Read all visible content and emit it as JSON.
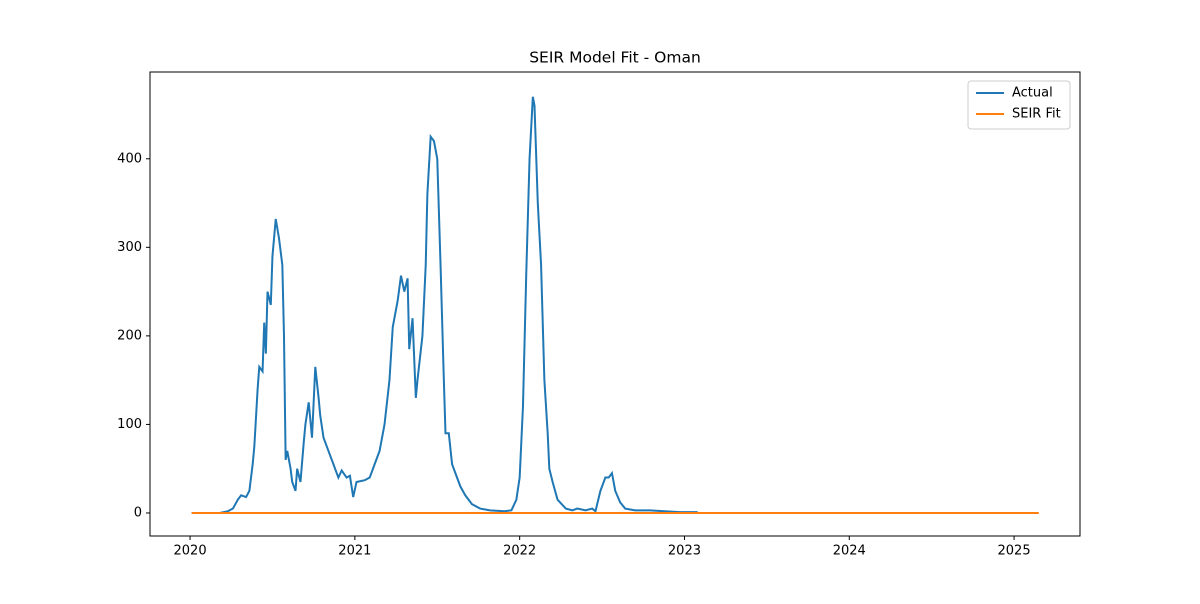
{
  "chart_data": {
    "type": "line",
    "title": "SEIR Model Fit - Oman",
    "legend": "upper right",
    "xlim": [
      2019.757,
      2025.4
    ],
    "xticks": [
      2020,
      2021,
      2022,
      2023,
      2024,
      2025
    ],
    "ylim": [
      -26,
      498
    ],
    "yticks": [
      0,
      100,
      200,
      300,
      400
    ],
    "series": [
      {
        "name": "Actual",
        "color": "#1f77b4",
        "x": [
          2020.01,
          2020.18,
          2020.23,
          2020.26,
          2020.29,
          2020.31,
          2020.34,
          2020.36,
          2020.38,
          2020.39,
          2020.41,
          2020.42,
          2020.44,
          2020.45,
          2020.46,
          2020.47,
          2020.49,
          2020.5,
          2020.52,
          2020.54,
          2020.56,
          2020.57,
          2020.58,
          2020.59,
          2020.61,
          2020.62,
          2020.64,
          2020.65,
          2020.67,
          2020.69,
          2020.7,
          2020.72,
          2020.74,
          2020.76,
          2020.78,
          2020.79,
          2020.81,
          2020.83,
          2020.85,
          2020.87,
          2020.9,
          2020.92,
          2020.95,
          2020.97,
          2020.99,
          2021.01,
          2021.06,
          2021.09,
          2021.12,
          2021.15,
          2021.18,
          2021.21,
          2021.23,
          2021.26,
          2021.28,
          2021.3,
          2021.32,
          2021.33,
          2021.35,
          2021.37,
          2021.38,
          2021.41,
          2021.43,
          2021.44,
          2021.46,
          2021.48,
          2021.5,
          2021.52,
          2021.54,
          2021.55,
          2021.57,
          2021.59,
          2021.61,
          2021.64,
          2021.67,
          2021.71,
          2021.76,
          2021.82,
          2021.91,
          2021.95,
          2021.98,
          2022.0,
          2022.02,
          2022.04,
          2022.06,
          2022.08,
          2022.09,
          2022.11,
          2022.13,
          2022.15,
          2022.17,
          2022.18,
          2022.2,
          2022.23,
          2022.28,
          2022.32,
          2022.35,
          2022.4,
          2022.44,
          2022.46,
          2022.49,
          2022.51,
          2022.52,
          2022.54,
          2022.56,
          2022.58,
          2022.61,
          2022.64,
          2022.7,
          2022.79,
          2022.88,
          2022.97,
          2023.08
        ],
        "values": [
          0,
          0,
          2,
          5,
          15,
          20,
          18,
          25,
          55,
          75,
          140,
          165,
          160,
          215,
          180,
          250,
          235,
          290,
          332,
          310,
          280,
          200,
          60,
          70,
          50,
          35,
          25,
          50,
          35,
          80,
          100,
          125,
          85,
          165,
          130,
          110,
          85,
          75,
          65,
          55,
          40,
          48,
          40,
          42,
          18,
          35,
          37,
          40,
          55,
          70,
          100,
          150,
          210,
          240,
          268,
          250,
          265,
          185,
          220,
          130,
          150,
          200,
          280,
          360,
          425,
          420,
          400,
          280,
          150,
          90,
          90,
          55,
          45,
          30,
          20,
          10,
          5,
          3,
          2,
          3,
          15,
          40,
          120,
          270,
          400,
          470,
          460,
          350,
          280,
          150,
          90,
          50,
          35,
          15,
          5,
          3,
          5,
          3,
          5,
          2,
          25,
          35,
          40,
          40,
          45,
          25,
          12,
          5,
          3,
          3,
          2,
          1,
          1
        ]
      },
      {
        "name": "SEIR Fit",
        "color": "#ff7f0e",
        "x": [
          2020.01,
          2025.15
        ],
        "values": [
          0,
          0
        ]
      }
    ]
  }
}
